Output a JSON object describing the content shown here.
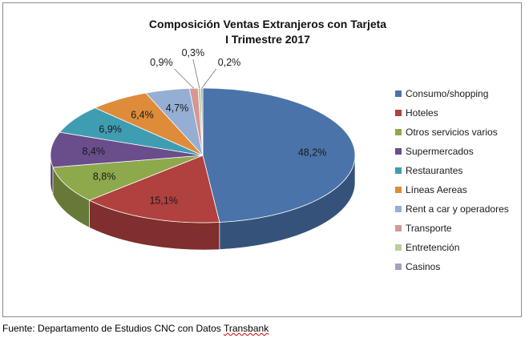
{
  "chart_data": {
    "type": "pie",
    "title": "Composición Ventas Extranjeros con Tarjeta",
    "subtitle": "I Trimestre 2017",
    "legend_position": "right",
    "three_d": true,
    "slices": [
      {
        "name": "Consumo/shopping",
        "value": 48.2,
        "label": "48,2%",
        "color": "#4a73aa"
      },
      {
        "name": "Hoteles",
        "value": 15.1,
        "label": "15,1%",
        "color": "#b0413e"
      },
      {
        "name": "Otros servicios varios",
        "value": 8.8,
        "label": "8,8%",
        "color": "#8ea84c"
      },
      {
        "name": "Supermercados",
        "value": 8.4,
        "label": "8,4%",
        "color": "#6a4d8b"
      },
      {
        "name": "Restaurantes",
        "value": 6.9,
        "label": "6,9%",
        "color": "#3f9db1"
      },
      {
        "name": "Líneas Aereas",
        "value": 6.4,
        "label": "6,4%",
        "color": "#de8b3a"
      },
      {
        "name": "Rent a car y operadores",
        "value": 4.7,
        "label": "4,7%",
        "color": "#95aed3"
      },
      {
        "name": "Transporte",
        "value": 0.9,
        "label": "0,9%",
        "color": "#d59794"
      },
      {
        "name": "Entretención",
        "value": 0.3,
        "label": "0,3%",
        "color": "#bccf98"
      },
      {
        "name": "Casinos",
        "value": 0.2,
        "label": "0,2%",
        "color": "#ab9cc3"
      }
    ]
  },
  "source_prefix": "Fuente: Departamento de Estudios CNC con Datos ",
  "source_suffix": "Transbank"
}
